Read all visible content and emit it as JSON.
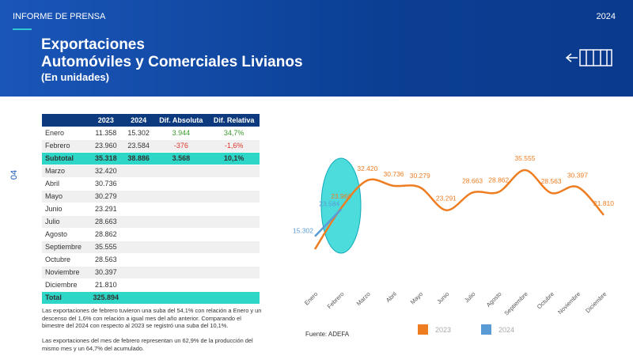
{
  "header": {
    "kicker": "INFORME DE PRENSA",
    "year": "2024",
    "title": [
      "Exportaciones",
      "Automóviles y Comerciales Livianos"
    ],
    "subtitle": "(En unidades)"
  },
  "page_number": "04",
  "table": {
    "columns": [
      "",
      "2023",
      "2024",
      "Dif. Absoluta",
      "Dif. Relativa"
    ],
    "rows": [
      [
        "Enero",
        "11.358",
        "15.302",
        "3.944",
        "34,7%"
      ],
      [
        "Febrero",
        "23.960",
        "23.584",
        "-376",
        "-1,6%"
      ],
      [
        "Subtotal",
        "35.318",
        "38.886",
        "3.568",
        "10,1%"
      ],
      [
        "Marzo",
        "32.420"
      ],
      [
        "Abril",
        "30.736"
      ],
      [
        "Mayo",
        "30.279"
      ],
      [
        "Junio",
        "23.291"
      ],
      [
        "Julio",
        "28.663"
      ],
      [
        "Agosto",
        "28.862"
      ],
      [
        "Septiembre",
        "35.555"
      ],
      [
        "Octubre",
        "28.563"
      ],
      [
        "Noviembre",
        "30.397"
      ],
      [
        "Diciembre",
        "21.810"
      ],
      [
        "Total",
        "325.894"
      ]
    ]
  },
  "notes": [
    "Las exportaciones de febrero tuvieron una suba del 54,1% con relación a Enero y un descenso del 1,6% con relación a igual mes del año anterior. Comparando el bimestre del 2024 con respecto al 2023 se registró una suba del 10,1%.",
    "Las exportaciones del mes de febrero representan un 62,9% de la producción del mismo mes y un 64,7% del acumulado."
  ],
  "source": "Fuente: ADEFA",
  "chart_data": {
    "type": "line",
    "categories": [
      "Enero",
      "Febrero",
      "Marzo",
      "Abril",
      "Mayo",
      "Junio",
      "Julio",
      "Agosto",
      "Septiembre",
      "Octubre",
      "Noviembre",
      "Diciembre"
    ],
    "series": [
      {
        "name": "2023",
        "color": "#ee7d22",
        "values": [
          11358,
          23960,
          32420,
          30736,
          30279,
          23291,
          28663,
          28862,
          35555,
          28563,
          30397,
          21810
        ],
        "value_labels": [
          null,
          "23.960",
          "32.420",
          "30.736",
          "30.279",
          "23.291",
          "28.663",
          "28.862",
          "35.555",
          "28.563",
          "30.397",
          "21.810"
        ]
      },
      {
        "name": "2024",
        "color": "#5b9bd5",
        "values": [
          15302,
          23584,
          null,
          null,
          null,
          null,
          null,
          null,
          null,
          null,
          null,
          null
        ],
        "value_labels": [
          "15.302",
          "23.584",
          null,
          null,
          null,
          null,
          null,
          null,
          null,
          null,
          null,
          null
        ]
      }
    ]
  }
}
